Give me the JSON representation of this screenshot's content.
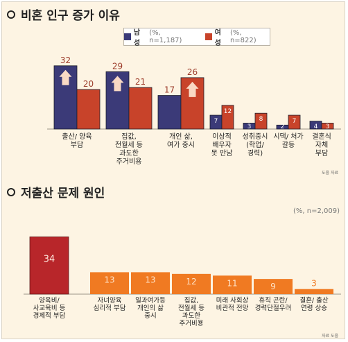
{
  "chart_data": [
    {
      "type": "bar",
      "title": "비혼 인구 증가 이유",
      "legend_position": "top",
      "series": [
        {
          "name": "남성",
          "note": "(%, n=1,187)",
          "color": "#3b3a78",
          "values": [
            32,
            29,
            17,
            7,
            3,
            2,
            4
          ]
        },
        {
          "name": "여성",
          "note": "(%, n=822)",
          "color": "#c8432a",
          "values": [
            20,
            21,
            26,
            12,
            8,
            7,
            3
          ]
        }
      ],
      "categories": [
        [
          "출산/ 양육",
          "부담"
        ],
        [
          "집값,",
          "전월세 등",
          "과도한",
          "주거비용"
        ],
        [
          "개인 삶,",
          "여가 중시"
        ],
        [
          "이상적",
          "배우자",
          "못 만남"
        ],
        [
          "성취중시",
          "(학업/",
          "경력)"
        ],
        [
          "시댁/ 처가",
          "갈등"
        ],
        [
          "결혼식",
          "자체",
          "부담"
        ]
      ],
      "top_marks": {
        "남성": [
          0,
          1
        ],
        "여성": [
          2
        ]
      },
      "source": "도움 자료"
    },
    {
      "type": "bar",
      "title": "저출산 문제 원인",
      "note": "(%, n=2,009)",
      "color": "#f07a22",
      "highlight_color": "#b8262a",
      "highlight_index": 0,
      "values": [
        34,
        13,
        13,
        12,
        11,
        9,
        3
      ],
      "categories": [
        [
          "양육비/",
          "사교육비 등",
          "경제적 부담"
        ],
        [
          "자녀양육",
          "심리적 부담"
        ],
        [
          "일과여가등",
          "개인의 삶",
          "중시"
        ],
        [
          "집값,",
          "전월세 등",
          "과도한",
          "주거비용"
        ],
        [
          "미래 사회상",
          "비관적 전망"
        ],
        [
          "휴직 곤란/",
          "경력단절우려"
        ],
        [
          "결혼/ 출산",
          "연령 상승"
        ]
      ],
      "source": "자료 도움"
    }
  ]
}
